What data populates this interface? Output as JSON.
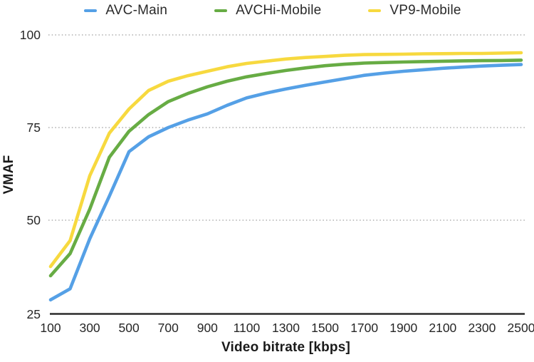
{
  "chart_data": {
    "type": "line",
    "title": "",
    "xlabel": "Video bitrate [kbps]",
    "ylabel": "VMAF",
    "xlim": [
      100,
      2500
    ],
    "ylim": [
      25,
      100
    ],
    "xticks": [
      100,
      300,
      500,
      700,
      900,
      1100,
      1300,
      1500,
      1700,
      1900,
      2100,
      2300,
      2500
    ],
    "yticks": [
      100,
      75,
      50,
      25
    ],
    "grid": "horizontal dotted gridlines at 50, 75, 100; solid x-axis baseline at 25",
    "legend_position": "top",
    "x": [
      100,
      200,
      300,
      400,
      500,
      600,
      700,
      800,
      900,
      1000,
      1100,
      1200,
      1300,
      1400,
      1500,
      1600,
      1700,
      1800,
      1900,
      2000,
      2100,
      2200,
      2300,
      2400,
      2500
    ],
    "series": [
      {
        "name": "AVC-Main",
        "color": "#55a0e6",
        "values": [
          28.5,
          31.5,
          45,
          56.5,
          68.5,
          72.5,
          75,
          77,
          78.7,
          81,
          83,
          84.3,
          85.4,
          86.4,
          87.3,
          88.2,
          89.1,
          89.7,
          90.2,
          90.6,
          91,
          91.3,
          91.6,
          91.8,
          92
        ]
      },
      {
        "name": "AVCHi-Mobile",
        "color": "#67ac44",
        "values": [
          35,
          41,
          53,
          67,
          74,
          78.5,
          82,
          84.2,
          86,
          87.5,
          88.7,
          89.6,
          90.4,
          91.1,
          91.7,
          92.1,
          92.4,
          92.55,
          92.7,
          92.8,
          92.9,
          93,
          93.05,
          93.1,
          93.2
        ]
      },
      {
        "name": "VP9-Mobile",
        "color": "#f7d93f",
        "values": [
          37.5,
          44.5,
          62,
          73.5,
          80,
          85,
          87.5,
          89,
          90.2,
          91.4,
          92.3,
          92.9,
          93.5,
          93.9,
          94.2,
          94.5,
          94.7,
          94.75,
          94.8,
          94.9,
          94.95,
          95,
          95,
          95.1,
          95.2
        ]
      }
    ]
  },
  "colors": {
    "axis": "#2b2b2b",
    "gridline": "#9e9e9e",
    "tick_text": "#262626"
  }
}
